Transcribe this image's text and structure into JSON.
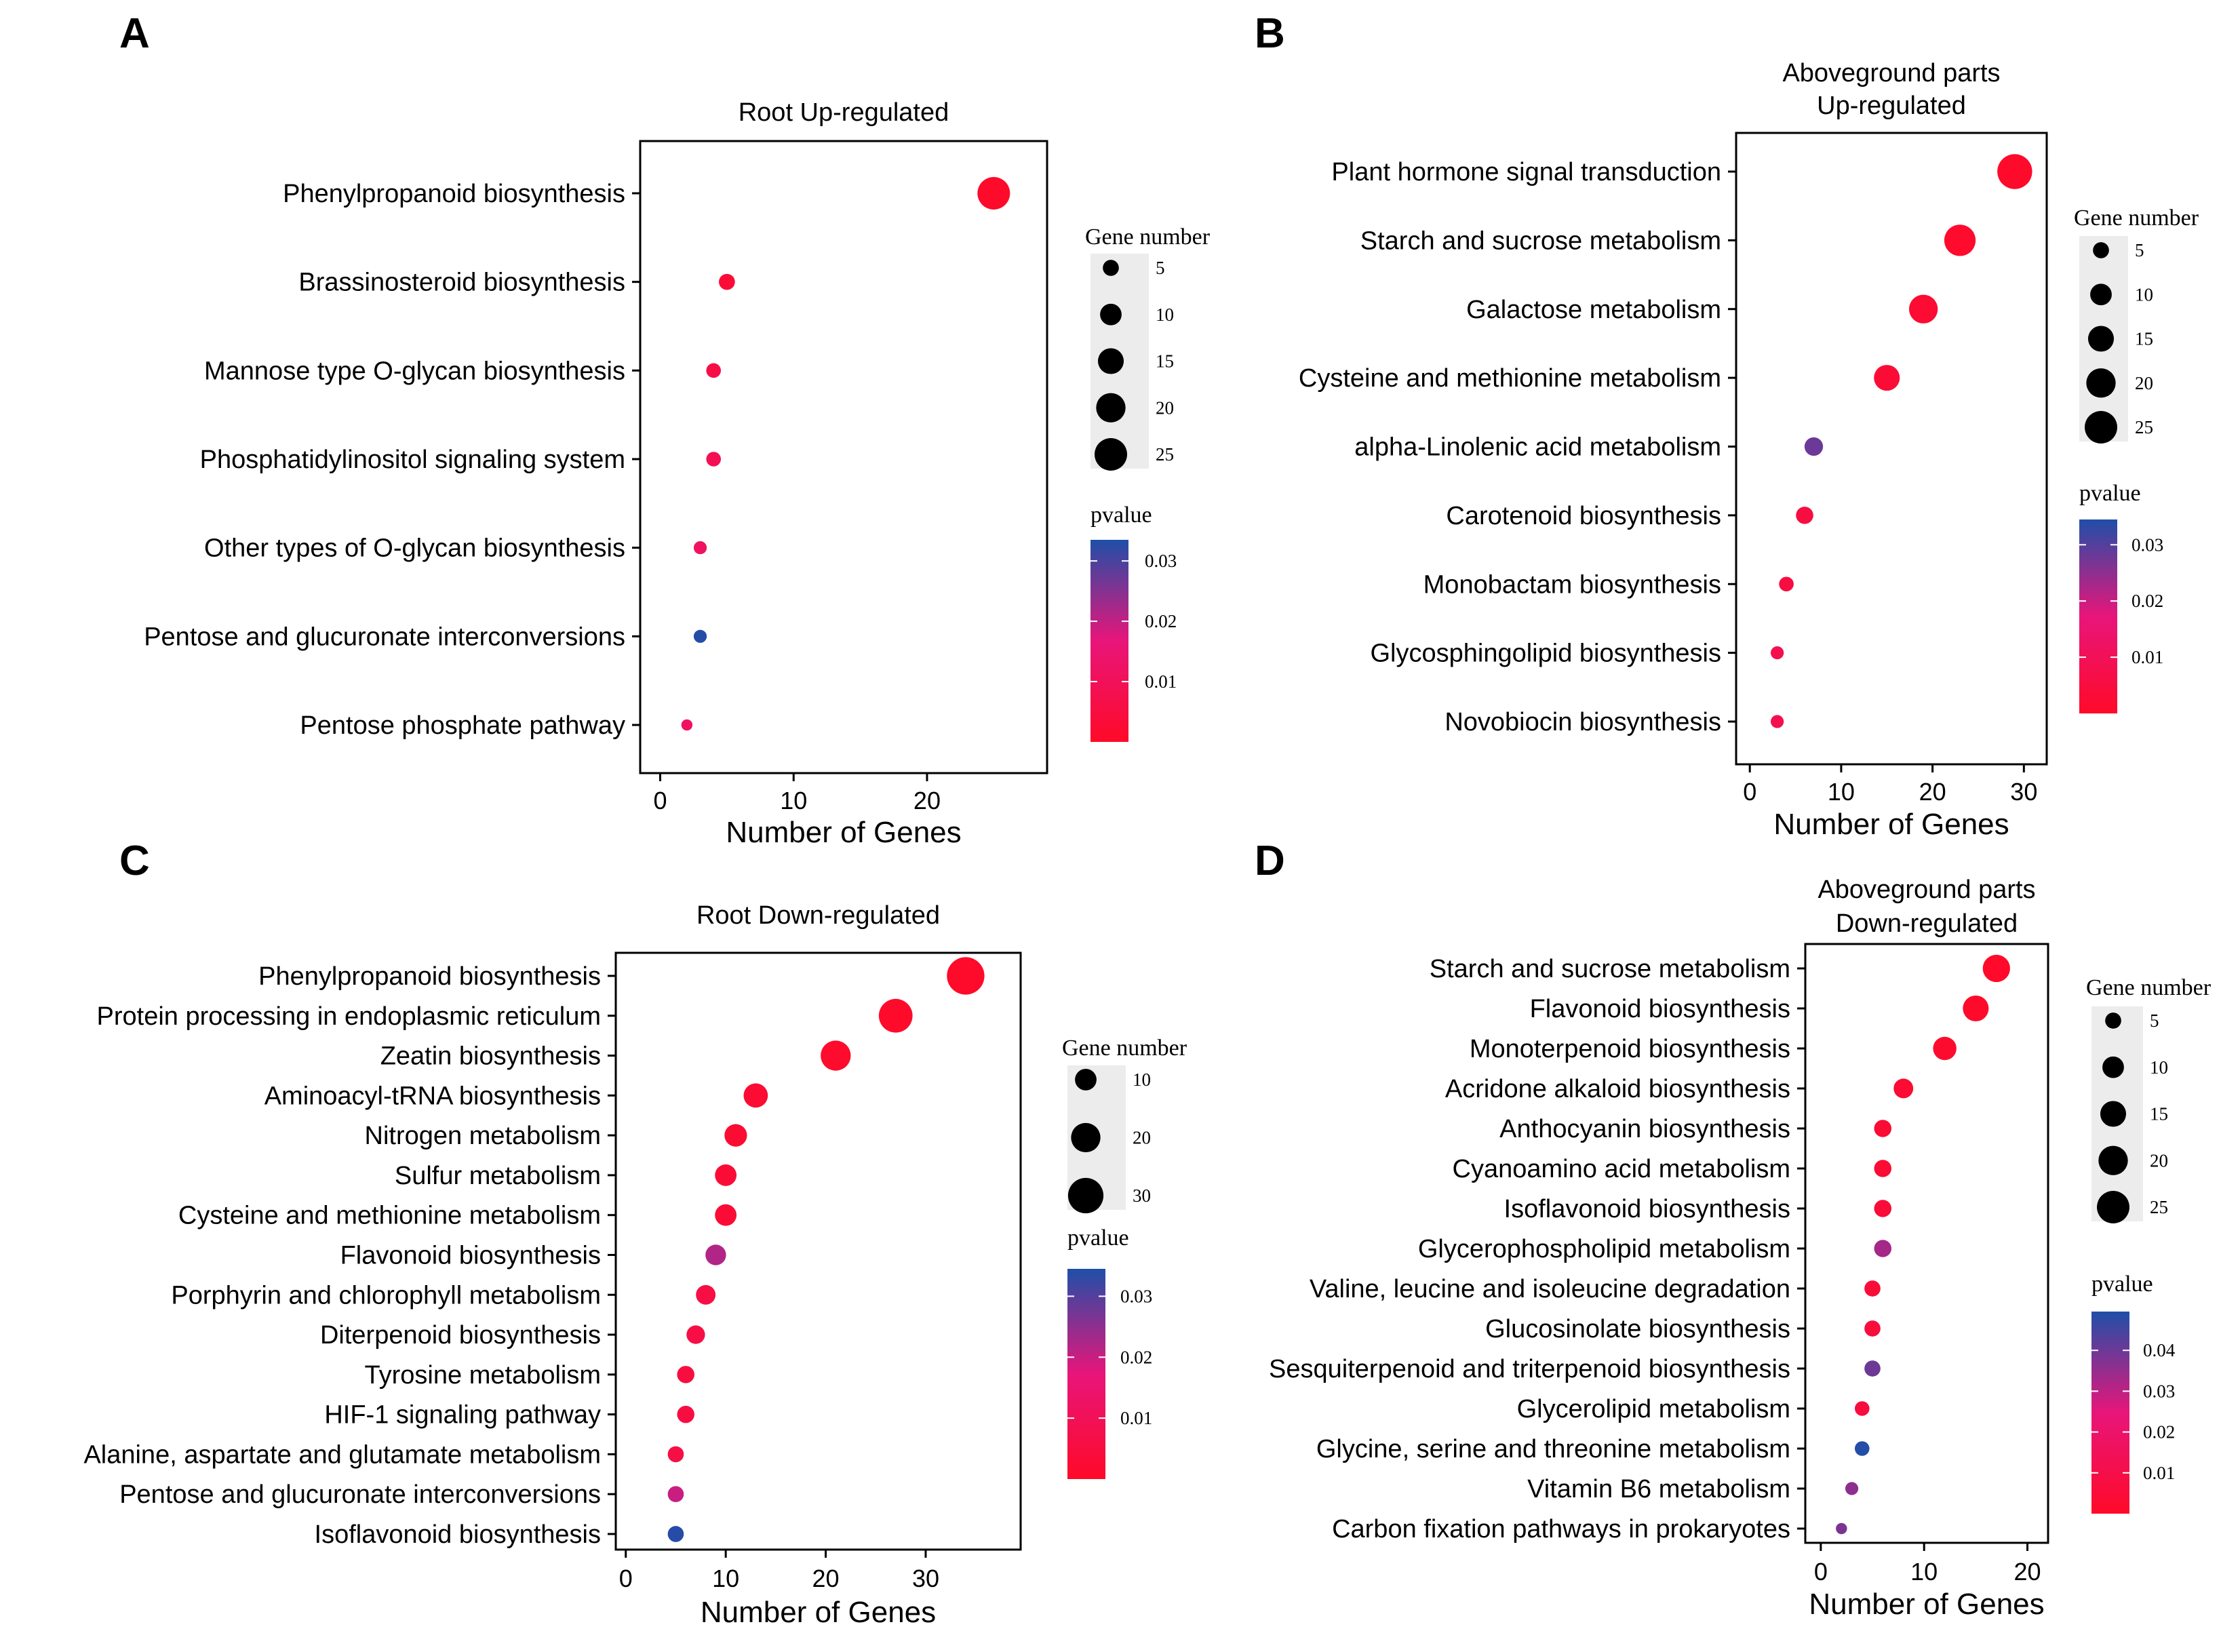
{
  "chart_data": [
    {
      "type": "scatter",
      "panel": "A",
      "title": "Root Up-regulated",
      "xlabel": "Number of Genes",
      "xlim": [
        -1.5,
        29
      ],
      "xticks": [
        0,
        10,
        20
      ],
      "size_legend": {
        "title": "Gene number",
        "values": [
          5,
          10,
          15,
          20,
          25
        ]
      },
      "color_legend": {
        "title": "pvalue",
        "ticks": [
          0.01,
          0.02,
          0.03
        ],
        "range": [
          0.0,
          0.0335
        ]
      },
      "colors": {
        "low": "#ff0a28",
        "mid": "#e8157a",
        "high": "#1f4fa8"
      },
      "categories": [
        "Phenylpropanoid biosynthesis",
        "Brassinosteroid biosynthesis",
        "Mannose type O-glycan biosynthesis",
        "Phosphatidylinositol signaling system",
        "Other types of O-glycan biosynthesis",
        "Pentose and glucuronate interconversions",
        "Pentose phosphate pathway"
      ],
      "values": [
        25,
        5,
        4,
        4,
        3,
        3,
        2
      ],
      "pvalues": [
        0.0005,
        0.003,
        0.006,
        0.009,
        0.012,
        0.033,
        0.012
      ]
    },
    {
      "type": "scatter",
      "panel": "B",
      "title": "Aboveground parts",
      "subtitle": "Up-regulated",
      "xlabel": "Number of Genes",
      "xlim": [
        -1.5,
        32.5
      ],
      "xticks": [
        0,
        10,
        20,
        30
      ],
      "size_legend": {
        "title": "Gene number",
        "values": [
          5,
          10,
          15,
          20,
          25
        ]
      },
      "color_legend": {
        "title": "pvalue",
        "ticks": [
          0.01,
          0.02,
          0.03
        ],
        "range": [
          0.0,
          0.0345
        ]
      },
      "colors": {
        "low": "#ff0a28",
        "mid": "#e8157a",
        "high": "#1f4fa8"
      },
      "categories": [
        "Plant hormone signal transduction",
        "Starch and sucrose metabolism",
        "Galactose metabolism",
        "Cysteine and methionine metabolism",
        "alpha-Linolenic acid metabolism",
        "Carotenoid biosynthesis",
        "Monobactam biosynthesis",
        "Glycosphingolipid biosynthesis",
        "Novobiocin biosynthesis"
      ],
      "values": [
        29,
        23,
        19,
        15,
        7,
        6,
        4,
        3,
        3
      ],
      "pvalues": [
        0.0005,
        0.001,
        0.002,
        0.003,
        0.028,
        0.005,
        0.005,
        0.008,
        0.008
      ]
    },
    {
      "type": "scatter",
      "panel": "C",
      "title": "Root Down-regulated",
      "xlabel": "Number of Genes",
      "xlim": [
        -1,
        39.5
      ],
      "xticks": [
        0,
        10,
        20,
        30
      ],
      "size_legend": {
        "title": "Gene number",
        "values": [
          10,
          20,
          30
        ]
      },
      "color_legend": {
        "title": "pvalue",
        "ticks": [
          0.01,
          0.02,
          0.03
        ],
        "range": [
          0.0,
          0.0345
        ]
      },
      "colors": {
        "low": "#ff0a28",
        "mid": "#e8157a",
        "high": "#1f4fa8"
      },
      "categories": [
        "Phenylpropanoid biosynthesis",
        "Protein processing in endoplasmic reticulum",
        "Zeatin biosynthesis",
        "Aminoacyl-tRNA biosynthesis",
        "Nitrogen metabolism",
        "Sulfur metabolism",
        "Cysteine and methionine metabolism",
        "Flavonoid biosynthesis",
        "Porphyrin and chlorophyll metabolism",
        "Diterpenoid biosynthesis",
        "Tyrosine metabolism",
        "HIF-1 signaling pathway",
        "Alanine, aspartate and glutamate metabolism",
        "Pentose and glucuronate interconversions",
        "Isoflavonoid biosynthesis"
      ],
      "values": [
        34,
        27,
        21,
        13,
        11,
        10,
        10,
        9,
        8,
        7,
        6,
        6,
        5,
        5,
        5
      ],
      "pvalues": [
        0.0005,
        0.0008,
        0.001,
        0.002,
        0.002,
        0.003,
        0.003,
        0.022,
        0.006,
        0.006,
        0.005,
        0.005,
        0.006,
        0.02,
        0.034
      ]
    },
    {
      "type": "scatter",
      "panel": "D",
      "title": "Aboveground parts",
      "subtitle": "Down-regulated",
      "xlabel": "Number of Genes",
      "xlim": [
        -1.5,
        22
      ],
      "xticks": [
        0,
        10,
        20
      ],
      "size_legend": {
        "title": "Gene number",
        "values": [
          5,
          10,
          15,
          20,
          25
        ]
      },
      "color_legend": {
        "title": "pvalue",
        "ticks": [
          0.01,
          0.02,
          0.03,
          0.04
        ],
        "range": [
          0.0,
          0.0495
        ]
      },
      "colors": {
        "low": "#ff0a28",
        "mid": "#e8157a",
        "high": "#1f4fa8"
      },
      "categories": [
        "Starch and sucrose metabolism",
        "Flavonoid biosynthesis",
        "Monoterpenoid biosynthesis",
        "Acridone alkaloid biosynthesis",
        "Anthocyanin biosynthesis",
        "Cyanoamino acid metabolism",
        "Isoflavonoid biosynthesis",
        "Glycerophospholipid metabolism",
        "Valine, leucine and isoleucine degradation",
        "Glucosinolate biosynthesis",
        "Sesquiterpenoid and triterpenoid biosynthesis",
        "Glycerolipid metabolism",
        "Glycine, serine and threonine metabolism",
        "Vitamin B6 metabolism",
        "Carbon fixation pathways in prokaryotes"
      ],
      "values": [
        17,
        15,
        12,
        8,
        6,
        6,
        6,
        6,
        5,
        5,
        5,
        4,
        4,
        3,
        2
      ],
      "pvalues": [
        0.0005,
        0.001,
        0.002,
        0.003,
        0.004,
        0.004,
        0.005,
        0.033,
        0.005,
        0.006,
        0.04,
        0.007,
        0.049,
        0.036,
        0.038
      ]
    }
  ]
}
